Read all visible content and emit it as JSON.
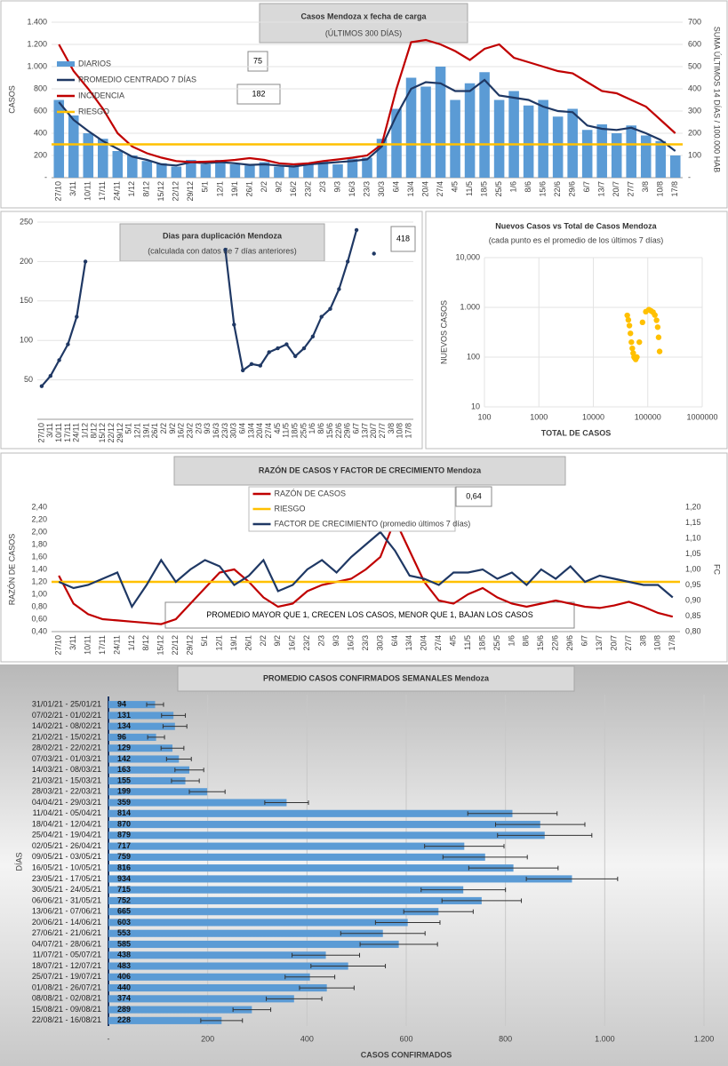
{
  "chart_data": [
    {
      "type": "combo",
      "title": "Casos Mendoza x fecha de carga",
      "subtitle": "(ÚLTIMOS 300 DÍAS)",
      "y_label": "CASOS",
      "y2_label": "SUMA  ÚLTIMOS 14 DÍAS / 100.000 HAB",
      "annotations": [
        "75",
        "182"
      ],
      "categories": [
        "27/10",
        "3/11",
        "10/11",
        "17/11",
        "24/11",
        "1/12",
        "8/12",
        "15/12",
        "22/12",
        "29/12",
        "5/1",
        "12/1",
        "19/1",
        "26/1",
        "2/2",
        "9/2",
        "16/2",
        "23/2",
        "2/3",
        "9/3",
        "16/3",
        "23/3",
        "30/3",
        "6/4",
        "13/4",
        "20/4",
        "27/4",
        "4/5",
        "11/5",
        "18/5",
        "25/5",
        "1/6",
        "8/6",
        "15/6",
        "22/6",
        "29/6",
        "6/7",
        "13/7",
        "20/7",
        "27/7",
        "3/8",
        "10/8",
        "17/8"
      ],
      "ylim": [
        0,
        1400
      ],
      "yticks": [
        {
          "value": 0,
          "label": "-"
        },
        200,
        400,
        600,
        800,
        {
          "value": 1000,
          "label": "1.000"
        },
        {
          "value": 1200,
          "label": "1.200"
        },
        {
          "value": 1400,
          "label": "1.400"
        }
      ],
      "y2lim": [
        0,
        700
      ],
      "y2ticks": [
        {
          "value": 0,
          "label": "-"
        },
        100,
        200,
        300,
        400,
        500,
        600,
        700
      ],
      "grid": true,
      "legend": "upper left",
      "series": [
        {
          "name": "DIARIOS",
          "type": "bar",
          "color": "#5b9bd5",
          "values": [
            700,
            560,
            400,
            350,
            240,
            200,
            150,
            130,
            100,
            160,
            120,
            160,
            120,
            110,
            140,
            100,
            110,
            130,
            150,
            120,
            170,
            180,
            350,
            620,
            900,
            820,
            1000,
            700,
            850,
            950,
            700,
            780,
            650,
            700,
            550,
            620,
            430,
            480,
            400,
            470,
            380,
            330,
            200
          ]
        },
        {
          "name": "PROMEDIO CENTRADO 7 DÍAS",
          "type": "line",
          "color": "#1f3864",
          "values": [
            680,
            520,
            420,
            330,
            260,
            190,
            160,
            120,
            110,
            140,
            130,
            140,
            130,
            115,
            120,
            110,
            100,
            120,
            130,
            140,
            150,
            165,
            280,
            560,
            800,
            860,
            850,
            780,
            780,
            880,
            740,
            720,
            700,
            640,
            600,
            590,
            470,
            440,
            430,
            450,
            400,
            340,
            240
          ]
        },
        {
          "name": "INCIDENCIA",
          "type": "line",
          "axis": "y2",
          "color": "#c00000",
          "values": [
            600,
            480,
            400,
            310,
            200,
            140,
            110,
            90,
            75,
            70,
            72,
            75,
            80,
            88,
            80,
            65,
            60,
            65,
            75,
            82,
            90,
            100,
            150,
            400,
            610,
            620,
            600,
            570,
            530,
            580,
            600,
            540,
            520,
            500,
            480,
            470,
            430,
            390,
            380,
            350,
            320,
            260,
            200
          ]
        },
        {
          "name": "RIESGO",
          "type": "line",
          "color": "#ffc000",
          "value": 300
        }
      ]
    },
    {
      "type": "line",
      "title": "Dias para duplicación Mendoza",
      "subtitle": "(calculada con datos de 7 días anteriores)",
      "annotations": [
        "418"
      ],
      "categories": [
        "27/10",
        "3/11",
        "10/11",
        "17/11",
        "24/11",
        "1/12",
        "8/12",
        "15/12",
        "22/12",
        "29/12",
        "5/1",
        "12/1",
        "19/1",
        "26/1",
        "2/2",
        "9/2",
        "16/2",
        "23/2",
        "2/3",
        "9/3",
        "16/3",
        "23/3",
        "30/3",
        "6/4",
        "13/4",
        "20/4",
        "27/4",
        "4/5",
        "11/5",
        "18/5",
        "25/5",
        "1/6",
        "8/6",
        "15/6",
        "22/6",
        "29/6",
        "6/7",
        "13/7",
        "20/7",
        "27/7",
        "3/8",
        "10/8",
        "17/8"
      ],
      "ylim": [
        0,
        250
      ],
      "yticks": [
        50,
        100,
        150,
        200,
        250
      ],
      "grid": true,
      "markers": true,
      "color": "#1f3864",
      "values": [
        42,
        55,
        75,
        95,
        130,
        200,
        null,
        null,
        null,
        null,
        null,
        null,
        null,
        null,
        null,
        null,
        null,
        null,
        null,
        null,
        null,
        215,
        120,
        62,
        70,
        68,
        85,
        90,
        95,
        80,
        90,
        105,
        130,
        140,
        165,
        200,
        240,
        null,
        210,
        null,
        null,
        null,
        null
      ]
    },
    {
      "type": "scatter",
      "title": "Nuevos Casos vs Total de Casos Mendoza",
      "subtitle": "(cada punto es el promedio de los últimos 7 días)",
      "x_label": "TOTAL DE CASOS",
      "y_label": "NUEVOS CASOS",
      "log_x": true,
      "log_y": true,
      "xlim": [
        100,
        1000000
      ],
      "xticks": [
        100,
        1000,
        10000,
        100000,
        1000000
      ],
      "ylim": [
        10,
        10000
      ],
      "yticks": [
        10,
        100,
        {
          "value": 1000,
          "label": "1.000"
        },
        {
          "value": 10000,
          "label": "10,000"
        }
      ],
      "grid": true,
      "color": "#ffc000",
      "x": [
        42000,
        44000,
        46000,
        48000,
        50000,
        52000,
        54000,
        56000,
        58000,
        60000,
        63000,
        70000,
        80000,
        92000,
        105000,
        115000,
        125000,
        135000,
        145000,
        152000,
        158000,
        165000
      ],
      "y": [
        690,
        560,
        430,
        300,
        200,
        150,
        120,
        100,
        95,
        90,
        100,
        200,
        500,
        820,
        900,
        850,
        800,
        700,
        550,
        400,
        250,
        130
      ]
    },
    {
      "type": "line",
      "title": "RAZÓN DE CASOS Y FACTOR DE CRECIMIENTO Mendoza",
      "y_label": "RAZÓN DE CASOS",
      "y2_label": "FC",
      "annotations": [
        "0,64",
        "PROMEDIO MAYOR QUE 1, CRECEN LOS CASOS, MENOR QUE 1, BAJAN LOS CASOS"
      ],
      "categories": [
        "27/10",
        "3/11",
        "10/11",
        "17/11",
        "24/11",
        "1/12",
        "8/12",
        "15/12",
        "22/12",
        "29/12",
        "5/1",
        "12/1",
        "19/1",
        "26/1",
        "2/2",
        "9/2",
        "16/2",
        "23/2",
        "2/3",
        "9/3",
        "16/3",
        "23/3",
        "30/3",
        "6/4",
        "13/4",
        "20/4",
        "27/4",
        "4/5",
        "11/5",
        "18/5",
        "25/5",
        "1/6",
        "8/6",
        "15/6",
        "22/6",
        "29/6",
        "6/7",
        "13/7",
        "20/7",
        "27/7",
        "3/8",
        "10/8",
        "17/8"
      ],
      "ylim": [
        0.4,
        2.4
      ],
      "yticks": [
        {
          "value": 0.4,
          "label": "0,40"
        },
        {
          "value": 0.6,
          "label": "0,60"
        },
        {
          "value": 0.8,
          "label": "0,80"
        },
        {
          "value": 1.0,
          "label": "1,00"
        },
        {
          "value": 1.2,
          "label": "1,20"
        },
        {
          "value": 1.4,
          "label": "1,40"
        },
        {
          "value": 1.6,
          "label": "1,60"
        },
        {
          "value": 1.8,
          "label": "1,80"
        },
        {
          "value": 2.0,
          "label": "2,00"
        },
        {
          "value": 2.2,
          "label": "2,20"
        },
        {
          "value": 2.4,
          "label": "2,40"
        }
      ],
      "y2lim": [
        0.8,
        1.2
      ],
      "y2ticks": [
        {
          "value": 0.8,
          "label": "0,80"
        },
        {
          "value": 0.85,
          "label": "0,85"
        },
        {
          "value": 0.9,
          "label": "0,90"
        },
        {
          "value": 0.95,
          "label": "0,95"
        },
        {
          "value": 1.0,
          "label": "1,00"
        },
        {
          "value": 1.05,
          "label": "1,05"
        },
        {
          "value": 1.1,
          "label": "1,10"
        },
        {
          "value": 1.15,
          "label": "1,15"
        },
        {
          "value": 1.2,
          "label": "1,20"
        }
      ],
      "grid": false,
      "legend": "upper center",
      "series": [
        {
          "name": "RAZÓN DE CASOS",
          "color": "#c00000",
          "values": [
            1.3,
            0.85,
            0.68,
            0.6,
            0.58,
            0.56,
            0.54,
            0.52,
            0.6,
            0.85,
            1.1,
            1.35,
            1.4,
            1.2,
            0.95,
            0.8,
            0.85,
            1.05,
            1.15,
            1.2,
            1.25,
            1.4,
            1.6,
            2.2,
            1.7,
            1.2,
            0.9,
            0.85,
            1.0,
            1.1,
            0.95,
            0.85,
            0.8,
            0.85,
            0.9,
            0.85,
            0.8,
            0.78,
            0.82,
            0.88,
            0.8,
            0.7,
            0.64
          ]
        },
        {
          "name": "RIESGO",
          "color": "#ffc000",
          "value": 1.2
        },
        {
          "name": "FACTOR DE CRECIMIENTO (promedio últimos 7 días)",
          "color": "#1f3864",
          "axis": "y2",
          "values": [
            0.96,
            0.94,
            0.95,
            0.97,
            0.99,
            0.88,
            0.95,
            1.03,
            0.96,
            1.0,
            1.03,
            1.01,
            0.95,
            0.98,
            1.03,
            0.93,
            0.95,
            1.0,
            1.03,
            0.99,
            1.04,
            1.08,
            1.12,
            1.06,
            0.98,
            0.97,
            0.95,
            0.99,
            0.99,
            1.0,
            0.97,
            0.99,
            0.95,
            1.0,
            0.97,
            1.01,
            0.96,
            0.98,
            0.97,
            0.96,
            0.95,
            0.95,
            0.91
          ]
        }
      ]
    },
    {
      "type": "bar",
      "orientation": "horizontal",
      "title": "PROMEDIO CASOS CONFIRMADOS SEMANALES Mendoza",
      "x_label": "CASOS CONFIRMADOS",
      "y_label": "DÍAS",
      "categories": [
        "31/01/21 - 25/01/21",
        "07/02/21 - 01/02/21",
        "14/02/21 - 08/02/21",
        "21/02/21 - 15/02/21",
        "28/02/21 - 22/02/21",
        "07/03/21 - 01/03/21",
        "14/03/21 - 08/03/21",
        "21/03/21 - 15/03/21",
        "28/03/21 - 22/03/21",
        "04/04/21 - 29/03/21",
        "11/04/21 - 05/04/21",
        "18/04/21 - 12/04/21",
        "25/04/21 - 19/04/21",
        "02/05/21 - 26/04/21",
        "09/05/21 - 03/05/21",
        "16/05/21 - 10/05/21",
        "23/05/21 - 17/05/21",
        "30/05/21 - 24/05/21",
        "06/06/21 - 31/05/21",
        "13/06/21 - 07/06/21",
        "20/06/21 - 14/06/21",
        "27/06/21 - 21/06/21",
        "04/07/21 - 28/06/21",
        "11/07/21 - 05/07/21",
        "18/07/21 - 12/07/21",
        "25/07/21 - 19/07/21",
        "01/08/21 - 26/07/21",
        "08/08/21 - 02/08/21",
        "15/08/21 - 09/08/21",
        "22/08/21 - 16/08/21"
      ],
      "values": [
        94,
        131,
        134,
        96,
        129,
        142,
        163,
        155,
        199,
        359,
        814,
        870,
        879,
        717,
        759,
        816,
        934,
        715,
        752,
        665,
        603,
        553,
        585,
        438,
        483,
        406,
        440,
        374,
        289,
        228
      ],
      "errors": [
        17,
        24,
        24,
        17,
        23,
        25,
        29,
        28,
        36,
        44,
        90,
        90,
        95,
        80,
        85,
        90,
        92,
        85,
        80,
        70,
        65,
        85,
        78,
        68,
        75,
        50,
        55,
        56,
        38,
        42
      ],
      "color": "#5b9bd5",
      "xlim": [
        0,
        1200
      ],
      "xticks": [
        {
          "value": 0,
          "label": "-"
        },
        200,
        400,
        600,
        800,
        {
          "value": 1000,
          "label": "1.000"
        },
        {
          "value": 1200,
          "label": "1.200"
        }
      ],
      "grid": true
    }
  ]
}
